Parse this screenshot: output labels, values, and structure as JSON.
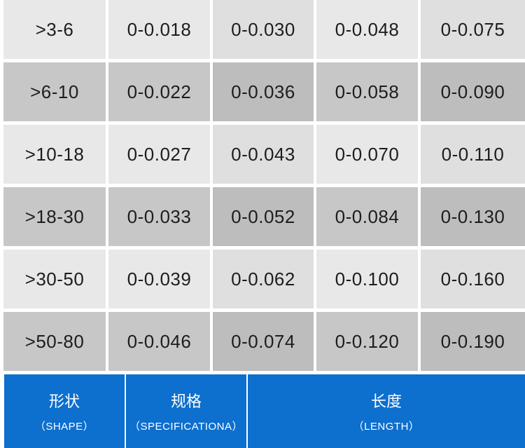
{
  "table": {
    "rows": [
      {
        "shape": ">3-6",
        "values": [
          "0-0.018",
          "0-0.030",
          "0-0.048",
          "0-0.075"
        ]
      },
      {
        "shape": ">6-10",
        "values": [
          "0-0.022",
          "0-0.036",
          "0-0.058",
          "0-0.090"
        ]
      },
      {
        "shape": ">10-18",
        "values": [
          "0-0.027",
          "0-0.043",
          "0-0.070",
          "0-0.110"
        ]
      },
      {
        "shape": ">18-30",
        "values": [
          "0-0.033",
          "0-0.052",
          "0-0.084",
          "0-0.130"
        ]
      },
      {
        "shape": ">30-50",
        "values": [
          "0-0.039",
          "0-0.062",
          "0-0.100",
          "0-0.160"
        ]
      },
      {
        "shape": ">50-80",
        "values": [
          "0-0.046",
          "0-0.074",
          "0-0.120",
          "0-0.190"
        ]
      }
    ]
  },
  "footer": {
    "shape_cn": "形状",
    "shape_en": "（SHAPE）",
    "spec_cn": "规格",
    "spec_en": "（SPECIFICATIONA）",
    "length_cn": "长度",
    "length_en": "（LENGTH）"
  },
  "colors": {
    "footer_bg": "#0d6fce",
    "row_light": "#e8e8e8",
    "row_dark": "#c7c7c7"
  }
}
